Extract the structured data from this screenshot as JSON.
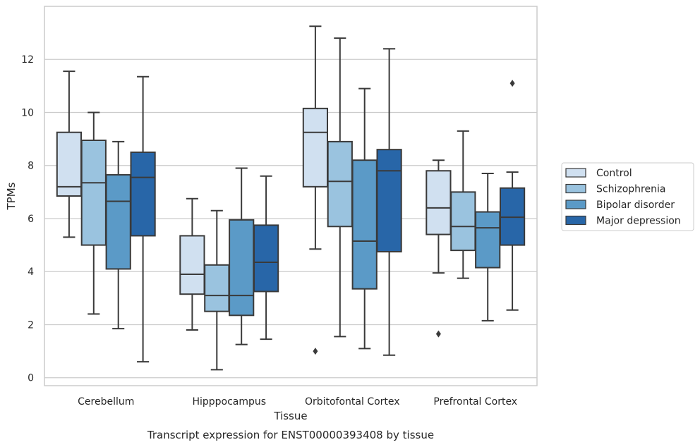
{
  "caption": "Transcript expression for ENST00000393408 by tissue",
  "chart_data": {
    "type": "box",
    "xlabel": "Tissue",
    "ylabel": "TPMs",
    "ylim": [
      -0.3,
      14.0
    ],
    "yticks": [
      0,
      2,
      4,
      6,
      8,
      10,
      12
    ],
    "grid": "horizontal",
    "legend_position": "right",
    "categories": [
      "Cerebellum",
      "Hipppocampus",
      "Orbitofontal Cortex",
      "Prefrontal Cortex"
    ],
    "series": [
      {
        "name": "Control",
        "color": "#d0e0f0",
        "boxes": [
          {
            "whislo": 5.3,
            "q1": 6.85,
            "med": 7.2,
            "q3": 9.25,
            "whishi": 11.55,
            "fliers": []
          },
          {
            "whislo": 1.8,
            "q1": 3.15,
            "med": 3.9,
            "q3": 5.35,
            "whishi": 6.75,
            "fliers": []
          },
          {
            "whislo": 4.85,
            "q1": 7.2,
            "med": 9.25,
            "q3": 10.15,
            "whishi": 13.25,
            "fliers": [
              1.0
            ]
          },
          {
            "whislo": 3.95,
            "q1": 5.4,
            "med": 6.4,
            "q3": 7.8,
            "whishi": 8.2,
            "fliers": [
              1.65
            ]
          }
        ]
      },
      {
        "name": "Schizophrenia",
        "color": "#9ac3df",
        "boxes": [
          {
            "whislo": 2.4,
            "q1": 5.0,
            "med": 7.35,
            "q3": 8.95,
            "whishi": 10.0,
            "fliers": []
          },
          {
            "whislo": 0.3,
            "q1": 2.5,
            "med": 3.1,
            "q3": 4.25,
            "whishi": 6.3,
            "fliers": []
          },
          {
            "whislo": 1.55,
            "q1": 5.7,
            "med": 7.4,
            "q3": 8.9,
            "whishi": 12.8,
            "fliers": []
          },
          {
            "whislo": 3.75,
            "q1": 4.8,
            "med": 5.7,
            "q3": 7.0,
            "whishi": 9.3,
            "fliers": []
          }
        ]
      },
      {
        "name": "Bipolar disorder",
        "color": "#5b9ac7",
        "boxes": [
          {
            "whislo": 1.85,
            "q1": 4.1,
            "med": 6.65,
            "q3": 7.65,
            "whishi": 8.9,
            "fliers": []
          },
          {
            "whislo": 1.25,
            "q1": 2.35,
            "med": 3.1,
            "q3": 5.95,
            "whishi": 7.9,
            "fliers": []
          },
          {
            "whislo": 1.1,
            "q1": 3.35,
            "med": 5.15,
            "q3": 8.2,
            "whishi": 10.9,
            "fliers": []
          },
          {
            "whislo": 2.15,
            "q1": 4.15,
            "med": 5.65,
            "q3": 6.25,
            "whishi": 7.7,
            "fliers": []
          }
        ]
      },
      {
        "name": "Major depression",
        "color": "#2866a8",
        "boxes": [
          {
            "whislo": 0.6,
            "q1": 5.35,
            "med": 7.55,
            "q3": 8.5,
            "whishi": 11.35,
            "fliers": []
          },
          {
            "whislo": 1.45,
            "q1": 3.25,
            "med": 4.35,
            "q3": 5.75,
            "whishi": 7.6,
            "fliers": []
          },
          {
            "whislo": 0.85,
            "q1": 4.75,
            "med": 7.8,
            "q3": 8.6,
            "whishi": 12.4,
            "fliers": []
          },
          {
            "whislo": 2.55,
            "q1": 5.0,
            "med": 6.05,
            "q3": 7.15,
            "whishi": 7.75,
            "fliers": [
              11.1
            ]
          }
        ]
      }
    ]
  }
}
